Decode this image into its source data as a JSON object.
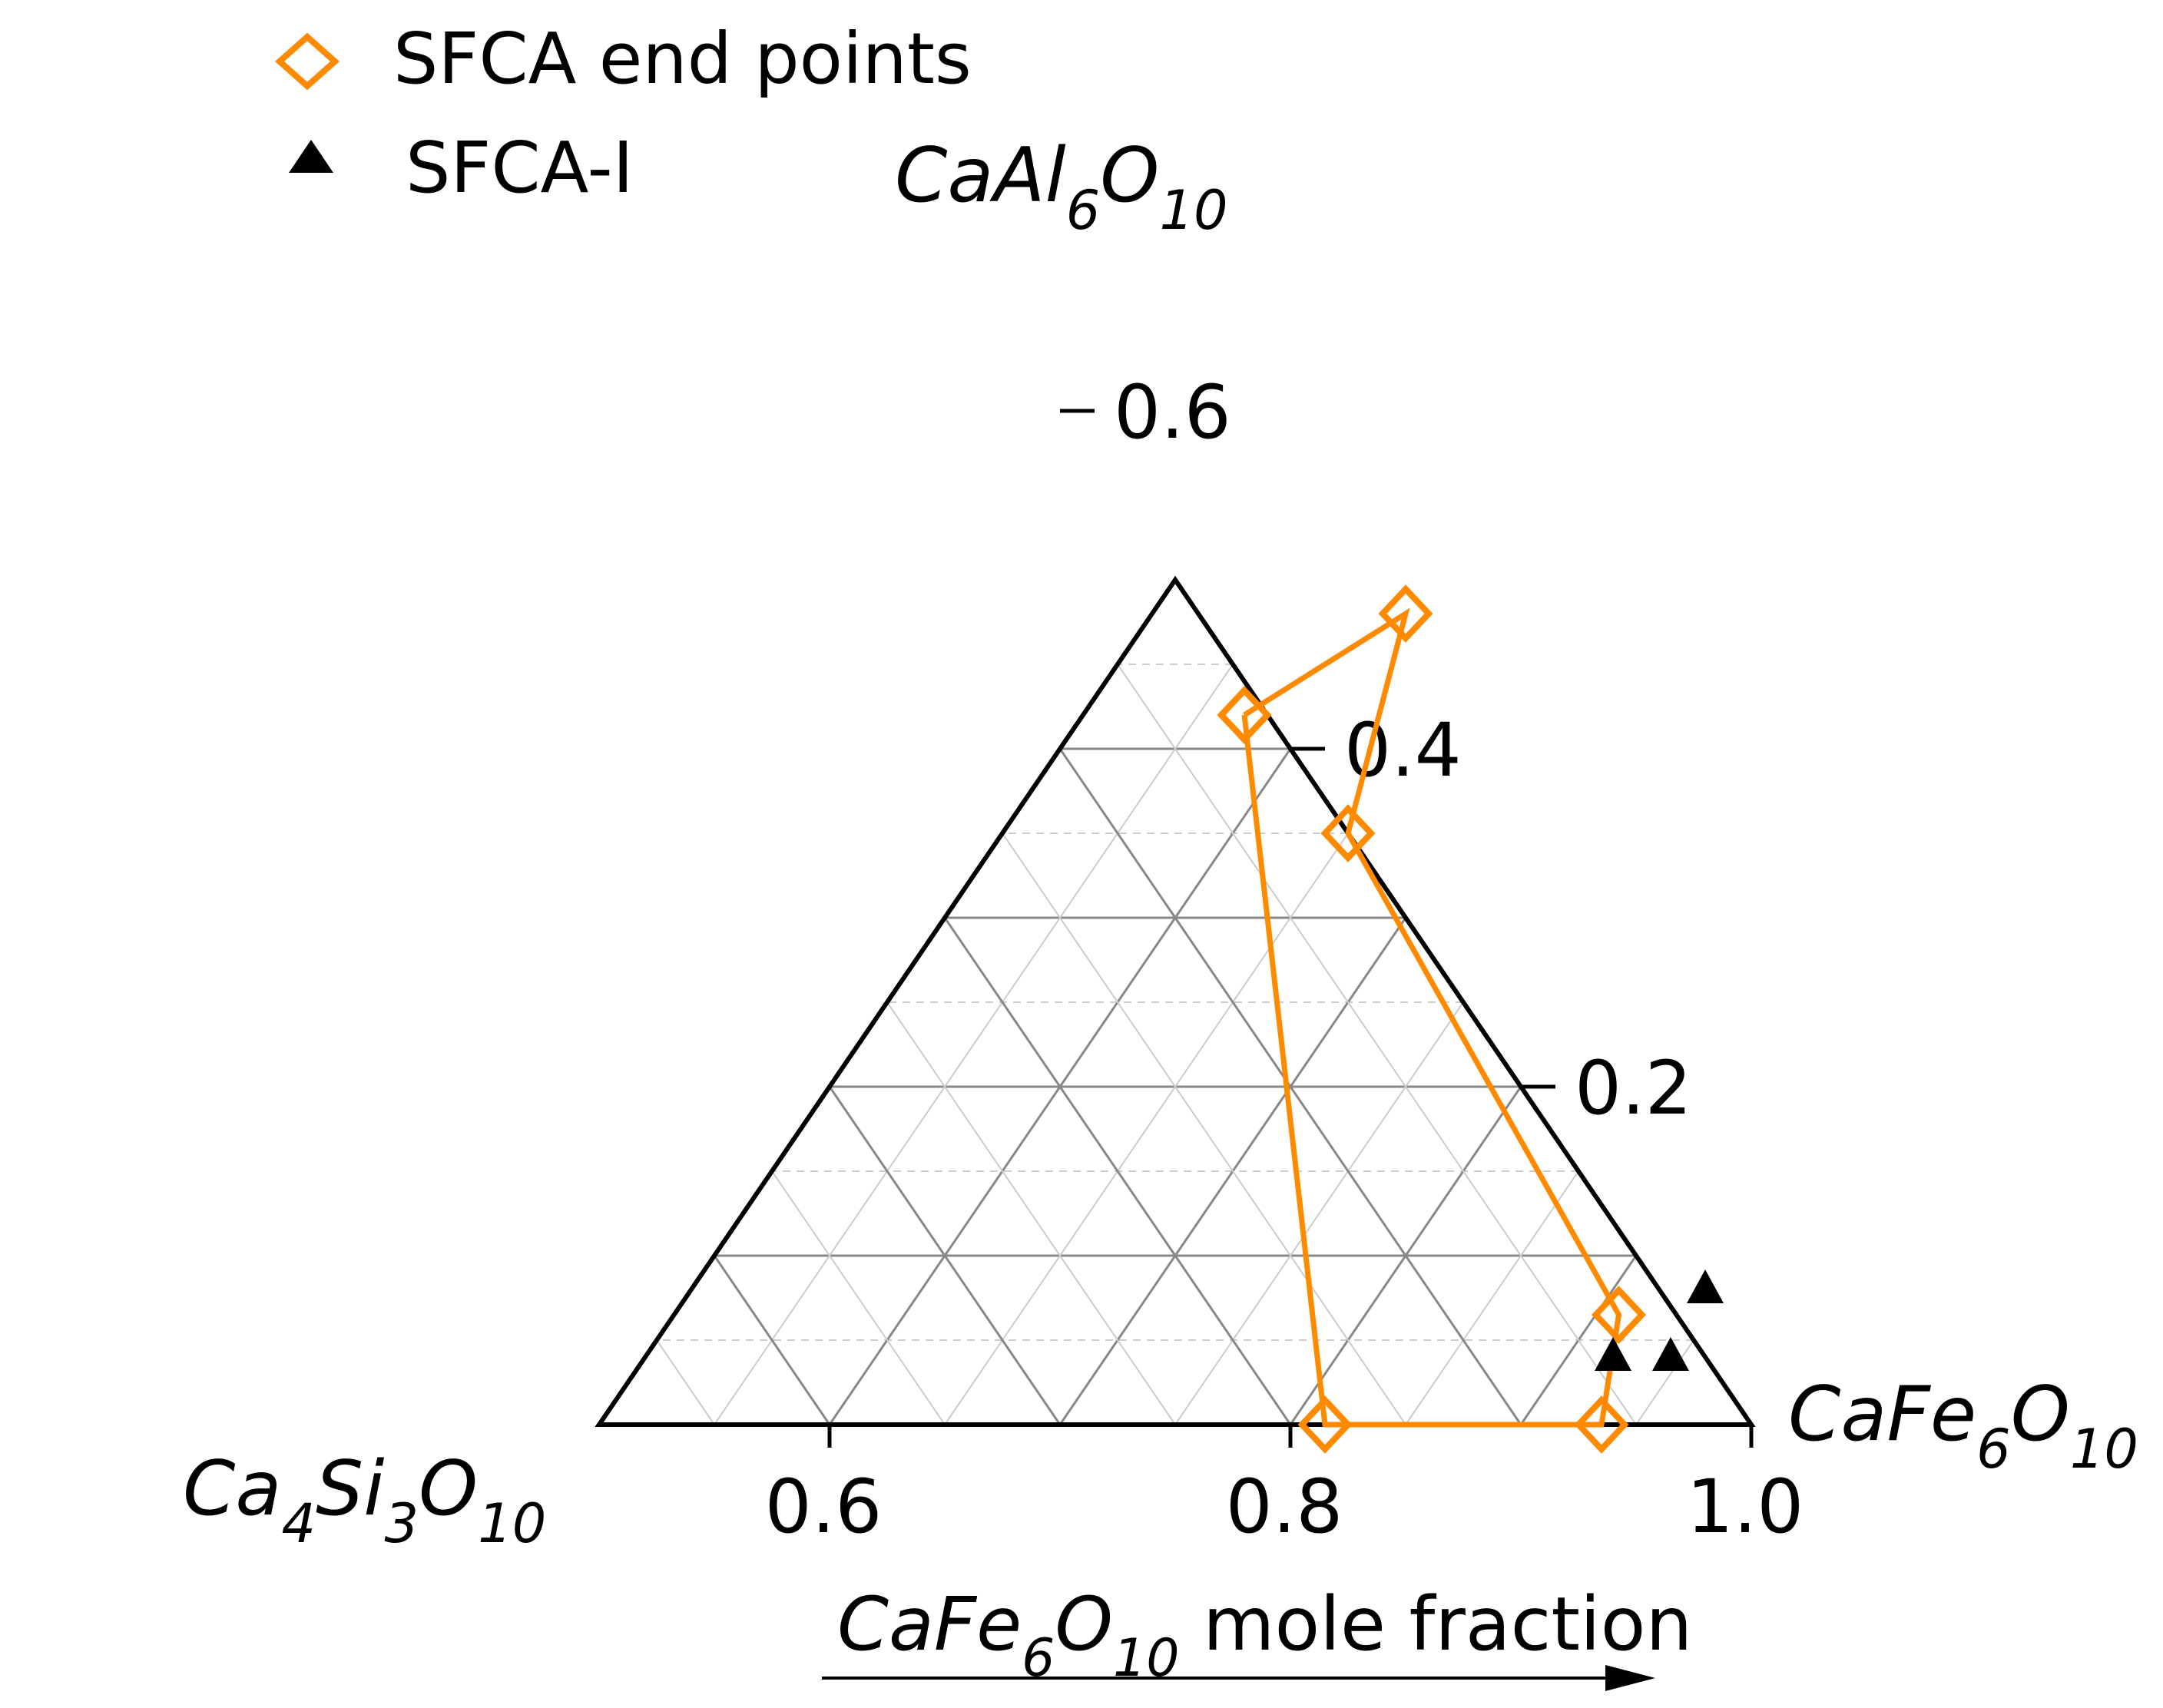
{
  "chart_data": {
    "type": "ternary-scatter",
    "view": "partial ternary (CaFe6O10 >= 0.5)",
    "components": {
      "fe": {
        "base": "CaFe",
        "sub1": "6",
        "mid": "O",
        "sub2": "10"
      },
      "al": {
        "base": "CaAl",
        "sub1": "6",
        "mid": "O",
        "sub2": "10"
      },
      "si": {
        "base": "Ca",
        "sub1": "4",
        "mid": "Si",
        "sub2": "3",
        "tail": "O",
        "sub3": "10"
      }
    },
    "xlabel": {
      "base": "CaFe",
      "sub1": "6",
      "mid": "O",
      "sub2": "10",
      "tail": " mole fraction"
    },
    "fe_range": [
      0.5,
      1.0
    ],
    "bottom_ticks": [
      {
        "value": 0.6,
        "label": "0.6"
      },
      {
        "value": 0.8,
        "label": "0.8"
      },
      {
        "value": 1.0,
        "label": "1.0"
      }
    ],
    "right_ticks": [
      {
        "value": 0.2,
        "label": "0.2"
      },
      {
        "value": 0.4,
        "label": "0.4"
      },
      {
        "value": 0.6,
        "label": "0.6"
      }
    ],
    "series": [
      {
        "name": "SFCA end points",
        "marker": "diamond-open",
        "color": "#FF8A00",
        "points": [
          {
            "fe": 0.57,
            "al": 0.42
          },
          {
            "fe": 0.61,
            "al": 0.48
          },
          {
            "fe": 0.65,
            "al": 0.35
          },
          {
            "fe": 0.91,
            "al": 0.065
          },
          {
            "fe": 0.935,
            "al": 0.0
          },
          {
            "fe": 0.815,
            "al": 0.0
          },
          {
            "fe": 0.57,
            "al": 0.42
          }
        ]
      },
      {
        "name": "SFCA-I",
        "marker": "triangle-filled",
        "color": "#000000",
        "points": [
          {
            "fe": 0.94,
            "al": 0.08
          },
          {
            "fe": 0.92,
            "al": 0.04
          },
          {
            "fe": 0.945,
            "al": 0.04
          }
        ]
      }
    ],
    "legend": {
      "position": "top-left"
    },
    "grid": true
  }
}
